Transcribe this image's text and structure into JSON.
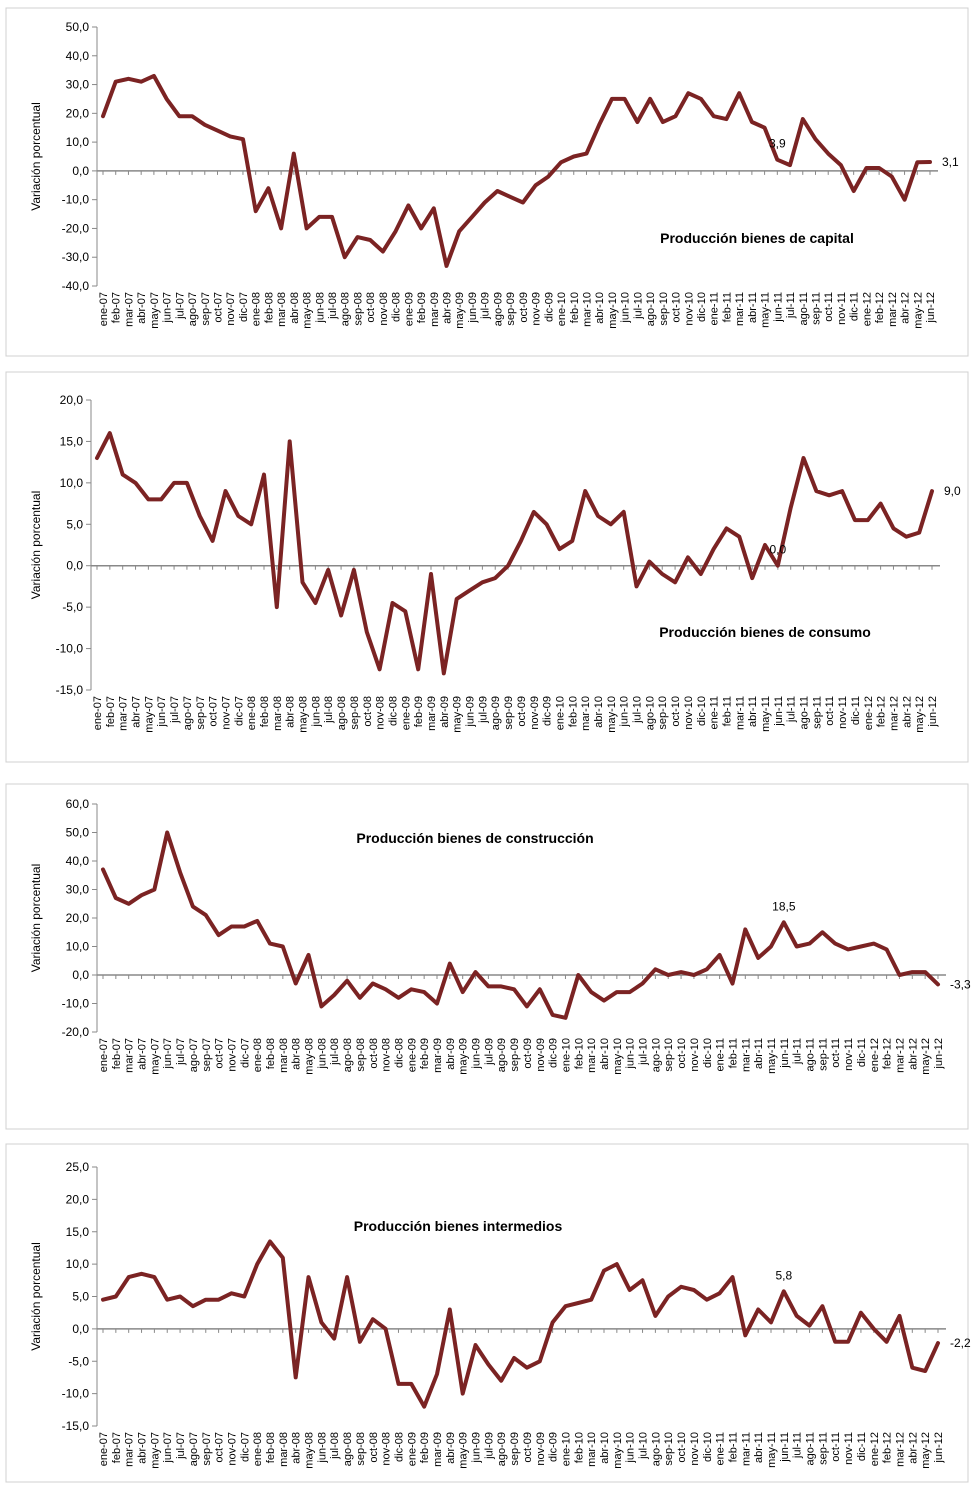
{
  "chart_data": [
    {
      "type": "line",
      "title": "Producción bienes de capital",
      "ylabel": "Variación porcentual",
      "color": "#7b2323",
      "categories": [
        "ene-07",
        "feb-07",
        "mar-07",
        "abr-07",
        "may-07",
        "jun-07",
        "jul-07",
        "ago-07",
        "sep-07",
        "oct-07",
        "nov-07",
        "dic-07",
        "ene-08",
        "feb-08",
        "mar-08",
        "abr-08",
        "may-08",
        "jun-08",
        "jul-08",
        "ago-08",
        "sep-08",
        "oct-08",
        "nov-08",
        "dic-08",
        "ene-09",
        "feb-09",
        "mar-09",
        "abr-09",
        "may-09",
        "jun-09",
        "jul-09",
        "ago-09",
        "sep-09",
        "oct-09",
        "nov-09",
        "dic-09",
        "ene-10",
        "feb-10",
        "mar-10",
        "abr-10",
        "may-10",
        "jun-10",
        "jul-10",
        "ago-10",
        "sep-10",
        "oct-10",
        "nov-10",
        "dic-10",
        "ene-11",
        "feb-11",
        "mar-11",
        "abr-11",
        "may-11",
        "jun-11",
        "jul-11",
        "ago-11",
        "sep-11",
        "oct-11",
        "nov-11",
        "dic-11",
        "ene-12",
        "feb-12",
        "mar-12",
        "abr-12",
        "may-12",
        "jun-12"
      ],
      "values": [
        19,
        31,
        32,
        31,
        33,
        25,
        19,
        19,
        16,
        14,
        12,
        11,
        -14,
        -6,
        -20,
        6,
        -20,
        -16,
        -16,
        -30,
        -23,
        -24,
        -28,
        -21,
        -12,
        -20,
        -13,
        -33,
        -21,
        -16,
        -11,
        -7,
        -9,
        -11,
        -5,
        -2,
        3,
        5,
        6,
        16,
        25,
        25,
        17,
        25,
        17,
        19,
        27,
        25,
        19,
        18,
        27,
        17,
        15,
        3.9,
        2,
        18,
        11,
        6,
        2,
        -7,
        1,
        1,
        -2,
        -10,
        3,
        3.1
      ],
      "value_labels": [
        null,
        null,
        null,
        null,
        null,
        null,
        null,
        null,
        null,
        null,
        null,
        null,
        null,
        null,
        null,
        null,
        null,
        null,
        null,
        null,
        null,
        null,
        null,
        null,
        null,
        null,
        null,
        null,
        null,
        null,
        null,
        null,
        null,
        null,
        null,
        null,
        null,
        null,
        null,
        null,
        null,
        null,
        null,
        null,
        null,
        null,
        null,
        null,
        null,
        null,
        null,
        null,
        null,
        "3,9",
        null,
        null,
        null,
        null,
        null,
        null,
        null,
        null,
        null,
        null,
        null,
        "3,1"
      ],
      "ylim": [
        -40,
        50
      ],
      "yticks": [
        {
          "value": -40,
          "label": "-40,0"
        },
        {
          "value": -30,
          "label": "-30,0"
        },
        {
          "value": -20,
          "label": "-20,0"
        },
        {
          "value": -10,
          "label": "-10,0"
        },
        {
          "value": 0,
          "label": "0,0"
        },
        {
          "value": 10,
          "label": "10,0"
        },
        {
          "value": 20,
          "label": "20,0"
        },
        {
          "value": 30,
          "label": "30,0"
        },
        {
          "value": 40,
          "label": "40,0"
        },
        {
          "value": 50,
          "label": "50,0"
        }
      ]
    },
    {
      "type": "line",
      "title": "Producción bienes de consumo",
      "ylabel": "Variación porcentual",
      "color": "#7b2323",
      "categories": [
        "ene-07",
        "feb-07",
        "mar-07",
        "abr-07",
        "may-07",
        "jun-07",
        "jul-07",
        "ago-07",
        "sep-07",
        "oct-07",
        "nov-07",
        "dic-07",
        "ene-08",
        "feb-08",
        "mar-08",
        "abr-08",
        "may-08",
        "jun-08",
        "jul-08",
        "ago-08",
        "sep-08",
        "oct-08",
        "nov-08",
        "dic-08",
        "ene-09",
        "feb-09",
        "mar-09",
        "abr-09",
        "may-09",
        "jun-09",
        "jul-09",
        "ago-09",
        "sep-09",
        "oct-09",
        "nov-09",
        "dic-09",
        "ene-10",
        "feb-10",
        "mar-10",
        "abr-10",
        "may-10",
        "jun-10",
        "jul-10",
        "ago-10",
        "sep-10",
        "oct-10",
        "nov-10",
        "dic-10",
        "ene-11",
        "feb-11",
        "mar-11",
        "abr-11",
        "may-11",
        "jun-11",
        "jul-11",
        "ago-11",
        "sep-11",
        "oct-11",
        "nov-11",
        "dic-11",
        "ene-12",
        "feb-12",
        "mar-12",
        "abr-12",
        "may-12",
        "jun-12"
      ],
      "values": [
        13,
        16,
        11,
        10,
        8,
        8,
        10,
        10,
        6,
        3,
        9,
        6,
        5,
        11,
        -5,
        15,
        -2,
        -4.5,
        -0.5,
        -6,
        -0.5,
        -8,
        -12.5,
        -4.5,
        -5.5,
        -12.5,
        -1,
        -13,
        -4,
        -3,
        -2,
        -1.5,
        0,
        3,
        6.5,
        5,
        2,
        3,
        9,
        6,
        5,
        6.5,
        -2.5,
        0.5,
        -1,
        -2,
        1,
        -1,
        2,
        4.5,
        3.5,
        -1.5,
        2.5,
        0,
        7,
        13,
        9,
        8.5,
        9,
        5.5,
        5.5,
        7.5,
        4.5,
        3.5,
        4,
        9
      ],
      "value_labels": [
        null,
        null,
        null,
        null,
        null,
        null,
        null,
        null,
        null,
        null,
        null,
        null,
        null,
        null,
        null,
        null,
        null,
        null,
        null,
        null,
        null,
        null,
        null,
        null,
        null,
        null,
        null,
        null,
        null,
        null,
        null,
        null,
        null,
        null,
        null,
        null,
        null,
        null,
        null,
        null,
        null,
        null,
        null,
        null,
        null,
        null,
        null,
        null,
        null,
        null,
        null,
        null,
        null,
        "0,0",
        null,
        null,
        null,
        null,
        null,
        null,
        null,
        null,
        null,
        null,
        null,
        "9,0"
      ],
      "ylim": [
        -15,
        20
      ],
      "yticks": [
        {
          "value": -15,
          "label": "-15,0"
        },
        {
          "value": -10,
          "label": "-10,0"
        },
        {
          "value": -5,
          "label": "-5,0"
        },
        {
          "value": 0,
          "label": "0,0"
        },
        {
          "value": 5,
          "label": "5,0"
        },
        {
          "value": 10,
          "label": "10,0"
        },
        {
          "value": 15,
          "label": "15,0"
        },
        {
          "value": 20,
          "label": "20,0"
        }
      ]
    },
    {
      "type": "line",
      "title": "Producción bienes de construcción",
      "ylabel": "Variación porcentual",
      "color": "#7b2323",
      "categories": [
        "ene-07",
        "feb-07",
        "mar-07",
        "abr-07",
        "may-07",
        "jun-07",
        "jul-07",
        "ago-07",
        "sep-07",
        "oct-07",
        "nov-07",
        "dic-07",
        "ene-08",
        "feb-08",
        "mar-08",
        "abr-08",
        "may-08",
        "jun-08",
        "jul-08",
        "ago-08",
        "sep-08",
        "oct-08",
        "nov-08",
        "dic-08",
        "ene-09",
        "feb-09",
        "mar-09",
        "abr-09",
        "may-09",
        "jun-09",
        "jul-09",
        "ago-09",
        "sep-09",
        "oct-09",
        "nov-09",
        "dic-09",
        "ene-10",
        "feb-10",
        "mar-10",
        "abr-10",
        "may-10",
        "jun-10",
        "jul-10",
        "ago-10",
        "sep-10",
        "oct-10",
        "nov-10",
        "dic-10",
        "ene-11",
        "feb-11",
        "mar-11",
        "abr-11",
        "may-11",
        "jun-11",
        "jul-11",
        "ago-11",
        "sep-11",
        "oct-11",
        "nov-11",
        "dic-11",
        "ene-12",
        "feb-12",
        "mar-12",
        "abr-12",
        "may-12",
        "jun-12"
      ],
      "values": [
        37,
        27,
        25,
        28,
        30,
        50,
        36,
        24,
        21,
        14,
        17,
        17,
        19,
        11,
        10,
        -3,
        7,
        -11,
        -7,
        -2,
        -8,
        -3,
        -5,
        -8,
        -5,
        -6,
        -10,
        4,
        -6,
        1,
        -4,
        -4,
        -5,
        -11,
        -5,
        -14,
        -15,
        0,
        -6,
        -9,
        -6,
        -6,
        -3,
        2,
        0,
        1,
        0,
        2,
        7,
        -3,
        16,
        6,
        10,
        18.5,
        10,
        11,
        15,
        11,
        9,
        10,
        11,
        9,
        0,
        1,
        1,
        -3.3
      ],
      "value_labels": [
        null,
        null,
        null,
        null,
        null,
        null,
        null,
        null,
        null,
        null,
        null,
        null,
        null,
        null,
        null,
        null,
        null,
        null,
        null,
        null,
        null,
        null,
        null,
        null,
        null,
        null,
        null,
        null,
        null,
        null,
        null,
        null,
        null,
        null,
        null,
        null,
        null,
        null,
        null,
        null,
        null,
        null,
        null,
        null,
        null,
        null,
        null,
        null,
        null,
        null,
        null,
        null,
        null,
        "18,5",
        null,
        null,
        null,
        null,
        null,
        null,
        null,
        null,
        null,
        null,
        null,
        "-3,3"
      ],
      "ylim": [
        -20,
        60
      ],
      "yticks": [
        {
          "value": -20,
          "label": "-20,0"
        },
        {
          "value": -10,
          "label": "-10,0"
        },
        {
          "value": 0,
          "label": "0,0"
        },
        {
          "value": 10,
          "label": "10,0"
        },
        {
          "value": 20,
          "label": "20,0"
        },
        {
          "value": 30,
          "label": "30,0"
        },
        {
          "value": 40,
          "label": "40,0"
        },
        {
          "value": 50,
          "label": "50,0"
        },
        {
          "value": 60,
          "label": "60,0"
        }
      ]
    },
    {
      "type": "line",
      "title": "Producción bienes intermedios",
      "ylabel": "Variación porcentual",
      "color": "#7b2323",
      "categories": [
        "ene-07",
        "feb-07",
        "mar-07",
        "abr-07",
        "may-07",
        "jun-07",
        "jul-07",
        "ago-07",
        "sep-07",
        "oct-07",
        "nov-07",
        "dic-07",
        "ene-08",
        "feb-08",
        "mar-08",
        "abr-08",
        "may-08",
        "jun-08",
        "jul-08",
        "ago-08",
        "sep-08",
        "oct-08",
        "nov-08",
        "dic-08",
        "ene-09",
        "feb-09",
        "mar-09",
        "abr-09",
        "may-09",
        "jun-09",
        "jul-09",
        "ago-09",
        "sep-09",
        "oct-09",
        "nov-09",
        "dic-09",
        "ene-10",
        "feb-10",
        "mar-10",
        "abr-10",
        "may-10",
        "jun-10",
        "jul-10",
        "ago-10",
        "sep-10",
        "oct-10",
        "nov-10",
        "dic-10",
        "ene-11",
        "feb-11",
        "mar-11",
        "abr-11",
        "may-11",
        "jun-11",
        "jul-11",
        "ago-11",
        "sep-11",
        "oct-11",
        "nov-11",
        "dic-11",
        "ene-12",
        "feb-12",
        "mar-12",
        "abr-12",
        "may-12",
        "jun-12"
      ],
      "values": [
        4.5,
        5,
        8,
        8.5,
        8,
        4.5,
        5,
        3.5,
        4.5,
        4.5,
        5.5,
        5,
        10,
        13.5,
        11,
        -7.5,
        8,
        1,
        -1.5,
        8,
        -2,
        1.5,
        0,
        -8.5,
        -8.5,
        -12,
        -7,
        3,
        -10,
        -2.5,
        -5.5,
        -8,
        -4.5,
        -6,
        -5,
        1,
        3.5,
        4,
        4.5,
        9,
        10,
        6,
        7.5,
        2,
        5,
        6.5,
        6,
        4.5,
        5.5,
        8,
        -1,
        3,
        1,
        5.8,
        2,
        0.5,
        3.5,
        -2,
        -2,
        2.5,
        0,
        -2,
        2,
        -6,
        -6.5,
        -2.2
      ],
      "value_labels": [
        null,
        null,
        null,
        null,
        null,
        null,
        null,
        null,
        null,
        null,
        null,
        null,
        null,
        null,
        null,
        null,
        null,
        null,
        null,
        null,
        null,
        null,
        null,
        null,
        null,
        null,
        null,
        null,
        null,
        null,
        null,
        null,
        null,
        null,
        null,
        null,
        null,
        null,
        null,
        null,
        null,
        null,
        null,
        null,
        null,
        null,
        null,
        null,
        null,
        null,
        null,
        null,
        null,
        "5,8",
        null,
        null,
        null,
        null,
        null,
        null,
        null,
        null,
        null,
        null,
        null,
        "-2,2"
      ],
      "ylim": [
        -15,
        25
      ],
      "yticks": [
        {
          "value": -15,
          "label": "-15,0"
        },
        {
          "value": -10,
          "label": "-10,0"
        },
        {
          "value": -5,
          "label": "-5,0"
        },
        {
          "value": 0,
          "label": "0,0"
        },
        {
          "value": 5,
          "label": "5,0"
        },
        {
          "value": 10,
          "label": "10,0"
        },
        {
          "value": 15,
          "label": "15,0"
        },
        {
          "value": 20,
          "label": "20,0"
        },
        {
          "value": 25,
          "label": "25,0"
        }
      ]
    }
  ]
}
